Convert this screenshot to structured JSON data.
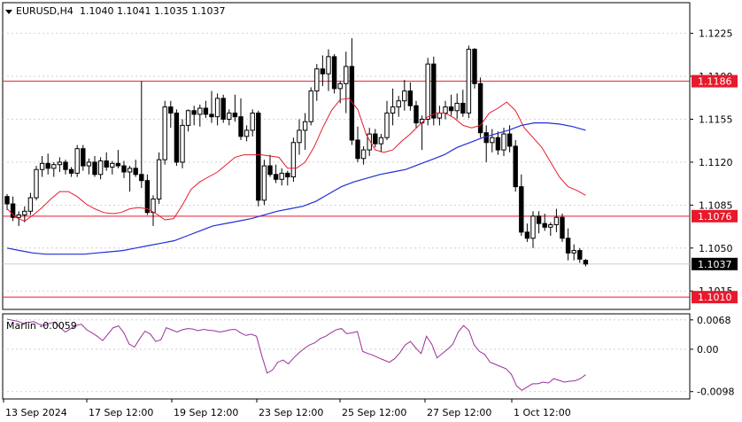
{
  "header": {
    "symbol_label": "EURUSD,H4",
    "ohlc": "1.1040 1.1041 1.1035 1.1037"
  },
  "indicator_label": "Marlin -0.0059",
  "colors": {
    "background": "#ffffff",
    "grid": "#c8c8c8",
    "candle": "#000000",
    "ma_fast": "#e8192c",
    "ma_slow": "#1f2fd8",
    "level_line": "#e8192c",
    "level_label_bg": "#e8192c",
    "current_label_bg": "#000000",
    "marlin": "#9b2f9b"
  },
  "chart_data": [
    {
      "type": "candlestick",
      "title": "EURUSD,H4",
      "ylim": [
        1.1,
        1.125
      ],
      "y_ticks": [
        "1.1225",
        "1.1190",
        "1.1155",
        "1.1120",
        "1.1085",
        "1.1050",
        "1.1015"
      ],
      "x_ticks": [
        "13 Sep 2024",
        "17 Sep 12:00",
        "19 Sep 12:00",
        "23 Sep 12:00",
        "25 Sep 12:00",
        "27 Sep 12:00",
        "1 Oct 12:00"
      ],
      "levels": [
        {
          "value": 1.1186,
          "label": "1.1186"
        },
        {
          "value": 1.1076,
          "label": "1.1076"
        },
        {
          "value": 1.101,
          "label": "1.1010"
        }
      ],
      "current_price": {
        "value": 1.1037,
        "label": "1.1037"
      },
      "candles": [
        [
          1.1092,
          1.1094,
          1.1081,
          1.1086
        ],
        [
          1.1086,
          1.1092,
          1.1072,
          1.1075
        ],
        [
          1.1075,
          1.108,
          1.1068,
          1.1077
        ],
        [
          1.1077,
          1.1084,
          1.1071,
          1.108
        ],
        [
          1.108,
          1.1095,
          1.1077,
          1.1091
        ],
        [
          1.1091,
          1.1117,
          1.1089,
          1.1114
        ],
        [
          1.1114,
          1.1125,
          1.1108,
          1.1119
        ],
        [
          1.1119,
          1.1127,
          1.111,
          1.1115
        ],
        [
          1.1115,
          1.112,
          1.1108,
          1.1118
        ],
        [
          1.1118,
          1.1124,
          1.1112,
          1.112
        ],
        [
          1.112,
          1.1122,
          1.111,
          1.1114
        ],
        [
          1.1114,
          1.1116,
          1.1108,
          1.1111
        ],
        [
          1.1111,
          1.1134,
          1.1108,
          1.1131
        ],
        [
          1.1131,
          1.1134,
          1.1113,
          1.1117
        ],
        [
          1.1117,
          1.1123,
          1.111,
          1.112
        ],
        [
          1.112,
          1.1125,
          1.1108,
          1.111
        ],
        [
          1.111,
          1.1124,
          1.1106,
          1.1121
        ],
        [
          1.1121,
          1.1128,
          1.1113,
          1.1116
        ],
        [
          1.1116,
          1.1121,
          1.111,
          1.1119
        ],
        [
          1.1119,
          1.113,
          1.1115,
          1.1117
        ],
        [
          1.1117,
          1.1121,
          1.1107,
          1.1112
        ],
        [
          1.1112,
          1.1117,
          1.1096,
          1.1115
        ],
        [
          1.1115,
          1.1122,
          1.1108,
          1.111
        ],
        [
          1.111,
          1.1186,
          1.1099,
          1.1105
        ],
        [
          1.1105,
          1.111,
          1.1077,
          1.1079
        ],
        [
          1.1079,
          1.1093,
          1.1068,
          1.109
        ],
        [
          1.109,
          1.1128,
          1.1086,
          1.1122
        ],
        [
          1.1122,
          1.117,
          1.1118,
          1.1165
        ],
        [
          1.1165,
          1.117,
          1.1148,
          1.116
        ],
        [
          1.116,
          1.1163,
          1.1117,
          1.112
        ],
        [
          1.112,
          1.1155,
          1.1115,
          1.115
        ],
        [
          1.115,
          1.1163,
          1.1145,
          1.1162
        ],
        [
          1.1162,
          1.1166,
          1.115,
          1.1159
        ],
        [
          1.1159,
          1.1167,
          1.1149,
          1.1164
        ],
        [
          1.1164,
          1.117,
          1.1156,
          1.1159
        ],
        [
          1.1159,
          1.1178,
          1.1152,
          1.1157
        ],
        [
          1.1157,
          1.1176,
          1.115,
          1.1172
        ],
        [
          1.1172,
          1.1175,
          1.1152,
          1.1155
        ],
        [
          1.1155,
          1.1163,
          1.115,
          1.116
        ],
        [
          1.116,
          1.1175,
          1.1153,
          1.1157
        ],
        [
          1.1157,
          1.1172,
          1.1138,
          1.1141
        ],
        [
          1.1141,
          1.115,
          1.1137,
          1.1146
        ],
        [
          1.1146,
          1.1163,
          1.1141,
          1.116
        ],
        [
          1.116,
          1.1162,
          1.1084,
          1.1089
        ],
        [
          1.1089,
          1.1122,
          1.1085,
          1.1117
        ],
        [
          1.1117,
          1.1126,
          1.1108,
          1.111
        ],
        [
          1.111,
          1.1118,
          1.1103,
          1.1106
        ],
        [
          1.1106,
          1.1115,
          1.1101,
          1.1111
        ],
        [
          1.1111,
          1.1113,
          1.1101,
          1.1108
        ],
        [
          1.1108,
          1.114,
          1.1104,
          1.1136
        ],
        [
          1.1136,
          1.1155,
          1.1126,
          1.1146
        ],
        [
          1.1146,
          1.116,
          1.113,
          1.1153
        ],
        [
          1.1153,
          1.1181,
          1.115,
          1.1178
        ],
        [
          1.1178,
          1.12,
          1.117,
          1.1196
        ],
        [
          1.1196,
          1.1207,
          1.1182,
          1.1192
        ],
        [
          1.1192,
          1.1212,
          1.1178,
          1.1206
        ],
        [
          1.1206,
          1.1208,
          1.1176,
          1.118
        ],
        [
          1.118,
          1.1186,
          1.1168,
          1.1184
        ],
        [
          1.1184,
          1.121,
          1.116,
          1.1198
        ],
        [
          1.1198,
          1.1221,
          1.1134,
          1.1138
        ],
        [
          1.1138,
          1.1149,
          1.112,
          1.1123
        ],
        [
          1.1123,
          1.1133,
          1.1118,
          1.113
        ],
        [
          1.113,
          1.1148,
          1.1125,
          1.1143
        ],
        [
          1.1143,
          1.1147,
          1.1132,
          1.1135
        ],
        [
          1.1135,
          1.1143,
          1.1128,
          1.114
        ],
        [
          1.114,
          1.117,
          1.1138,
          1.116
        ],
        [
          1.116,
          1.118,
          1.115,
          1.1165
        ],
        [
          1.1165,
          1.1174,
          1.1157,
          1.117
        ],
        [
          1.117,
          1.1187,
          1.1162,
          1.1178
        ],
        [
          1.1178,
          1.1185,
          1.1162,
          1.1166
        ],
        [
          1.1166,
          1.117,
          1.1148,
          1.1152
        ],
        [
          1.1152,
          1.1158,
          1.113,
          1.1155
        ],
        [
          1.1155,
          1.1205,
          1.115,
          1.12
        ],
        [
          1.12,
          1.1206,
          1.115,
          1.1156
        ],
        [
          1.1156,
          1.1166,
          1.115,
          1.116
        ],
        [
          1.116,
          1.117,
          1.1155,
          1.1165
        ],
        [
          1.1165,
          1.1175,
          1.1158,
          1.1162
        ],
        [
          1.1162,
          1.1176,
          1.1155,
          1.1168
        ],
        [
          1.1168,
          1.1179,
          1.1157,
          1.116
        ],
        [
          1.116,
          1.1215,
          1.1156,
          1.1212
        ],
        [
          1.1212,
          1.1213,
          1.118,
          1.1184
        ],
        [
          1.1184,
          1.1189,
          1.114,
          1.1144
        ],
        [
          1.1144,
          1.115,
          1.112,
          1.1136
        ],
        [
          1.1136,
          1.1147,
          1.1128,
          1.114
        ],
        [
          1.114,
          1.1145,
          1.1126,
          1.113
        ],
        [
          1.113,
          1.1148,
          1.1125,
          1.1143
        ],
        [
          1.1143,
          1.115,
          1.1128,
          1.1133
        ],
        [
          1.1133,
          1.1138,
          1.1096,
          1.11
        ],
        [
          1.11,
          1.111,
          1.106,
          1.1063
        ],
        [
          1.1063,
          1.107,
          1.1055,
          1.1058
        ],
        [
          1.1058,
          1.108,
          1.105,
          1.1076
        ],
        [
          1.1076,
          1.108,
          1.1062,
          1.107
        ],
        [
          1.107,
          1.1078,
          1.1064,
          1.1067
        ],
        [
          1.1067,
          1.1071,
          1.106,
          1.1069
        ],
        [
          1.1069,
          1.1082,
          1.1063,
          1.1075
        ],
        [
          1.1075,
          1.1078,
          1.1055,
          1.1058
        ],
        [
          1.1058,
          1.1066,
          1.104,
          1.1046
        ],
        [
          1.1046,
          1.1053,
          1.104,
          1.1048
        ],
        [
          1.1048,
          1.105,
          1.1038,
          1.1041
        ],
        [
          1.104,
          1.1041,
          1.1035,
          1.1037
        ]
      ],
      "ma_fast": [
        1.1082,
        1.1075,
        1.1072,
        1.1077,
        1.1083,
        1.109,
        1.1096,
        1.1096,
        1.1092,
        1.1086,
        1.1082,
        1.1079,
        1.1078,
        1.1079,
        1.1082,
        1.1083,
        1.1082,
        1.1078,
        1.1073,
        1.1074,
        1.1085,
        1.1098,
        1.1104,
        1.1108,
        1.1112,
        1.1118,
        1.1124,
        1.1126,
        1.1126,
        1.1126,
        1.1125,
        1.1124,
        1.1115,
        1.1115,
        1.112,
        1.1132,
        1.1148,
        1.1162,
        1.1171,
        1.1172,
        1.1163,
        1.1142,
        1.113,
        1.1128,
        1.113,
        1.1137,
        1.1143,
        1.115,
        1.1157,
        1.116,
        1.116,
        1.1156,
        1.115,
        1.1148,
        1.115,
        1.116,
        1.1164,
        1.1169,
        1.1162,
        1.1148,
        1.114,
        1.1132,
        1.112,
        1.1108,
        1.11,
        1.1097,
        1.1093
      ],
      "ma_fast_start": 0,
      "ma_slow": [
        1.105,
        1.1048,
        1.1046,
        1.1045,
        1.1045,
        1.1045,
        1.1045,
        1.1046,
        1.1047,
        1.1048,
        1.105,
        1.1052,
        1.1054,
        1.1056,
        1.106,
        1.1064,
        1.1068,
        1.107,
        1.1072,
        1.1074,
        1.1077,
        1.108,
        1.1082,
        1.1084,
        1.1088,
        1.1094,
        1.11,
        1.1104,
        1.1107,
        1.111,
        1.1112,
        1.1114,
        1.1118,
        1.1122,
        1.1126,
        1.1132,
        1.1136,
        1.114,
        1.1143,
        1.1146,
        1.115,
        1.1152,
        1.1152,
        1.1151,
        1.1149,
        1.1146
      ],
      "ma_slow_start": 0
    },
    {
      "type": "line",
      "title": "Marlin -0.0059",
      "ylim": [
        -0.0115,
        0.0082
      ],
      "y_ticks": [
        "0.0068",
        "0.00",
        "-0.0098"
      ],
      "series": [
        {
          "values": [
            0.007,
            0.0067,
            0.0065,
            0.006,
            0.0062,
            0.0064,
            0.0058,
            0.0055,
            0.006,
            0.0063,
            0.005,
            0.004,
            0.0048,
            0.0055,
            0.0058,
            0.0045,
            0.0038,
            0.003,
            0.002,
            0.0035,
            0.005,
            0.0054,
            0.0038,
            0.0012,
            0.0005,
            0.0025,
            0.0042,
            0.0035,
            0.0018,
            0.0022,
            0.005,
            0.0045,
            0.004,
            0.0045,
            0.0048,
            0.0047,
            0.0043,
            0.0046,
            0.0044,
            0.0043,
            0.004,
            0.0042,
            0.0045,
            0.0046,
            0.0038,
            0.0032,
            0.0035,
            0.003,
            -0.0015,
            -0.0055,
            -0.0048,
            -0.003,
            -0.0025,
            -0.0034,
            -0.002,
            -0.0008,
            0.0002,
            0.001,
            0.0015,
            0.0025,
            0.003,
            0.0038,
            0.0045,
            0.0048,
            0.0036,
            0.0038,
            0.0041,
            -0.0005,
            -0.001,
            -0.0014,
            -0.002,
            -0.0025,
            -0.003,
            -0.0022,
            -0.0008,
            0.001,
            0.0018,
            0.0003,
            -0.001,
            0.003,
            0.0012,
            -0.002,
            -0.001,
            0.0,
            0.0012,
            0.004,
            0.0055,
            0.0044,
            0.001,
            -0.0005,
            -0.0012,
            -0.003,
            -0.0035,
            -0.004,
            -0.0045,
            -0.0058,
            -0.0085,
            -0.0095,
            -0.0087,
            -0.008,
            -0.008,
            -0.0076,
            -0.0078,
            -0.0068,
            -0.0072,
            -0.0076,
            -0.0074,
            -0.0073,
            -0.0068,
            -0.0059
          ]
        }
      ]
    }
  ]
}
